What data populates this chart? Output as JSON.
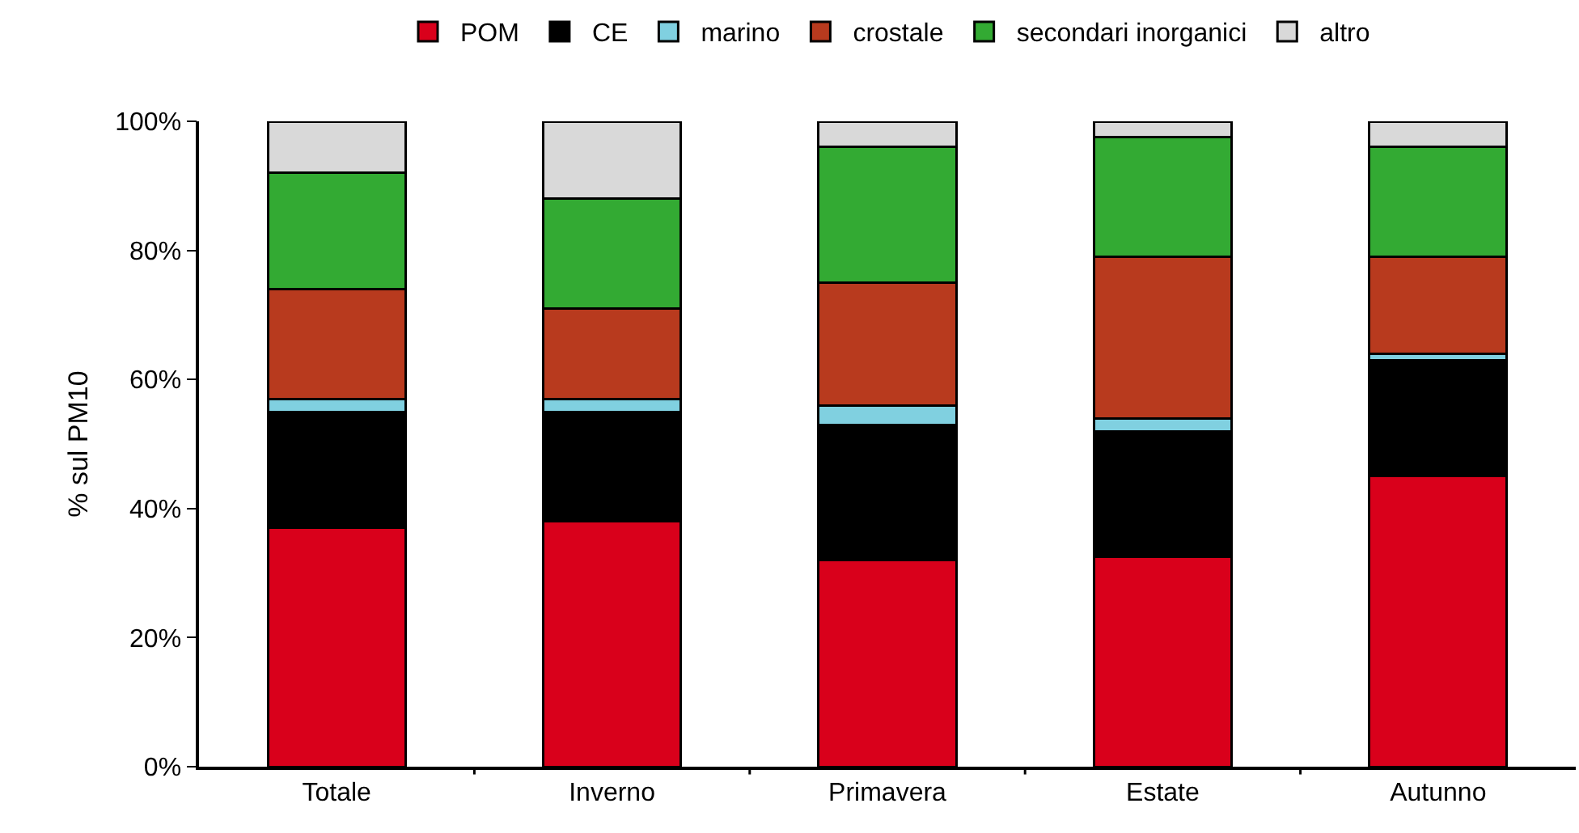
{
  "chart_data": {
    "type": "bar",
    "stacked": true,
    "ylabel": "% sul PM10",
    "legend": "top",
    "categories": [
      "Totale",
      "Inverno",
      "Primavera",
      "Estate",
      "Autunno"
    ],
    "ylim": [
      0,
      100
    ],
    "yticks": [
      {
        "value": 0,
        "label": "0%"
      },
      {
        "value": 20,
        "label": "20%"
      },
      {
        "value": 40,
        "label": "40%"
      },
      {
        "value": 60,
        "label": "60%"
      },
      {
        "value": 80,
        "label": "80%"
      },
      {
        "value": 100,
        "label": "100%"
      }
    ],
    "series": [
      {
        "name": "POM",
        "color": "#d9001b",
        "values": [
          37,
          38,
          32,
          32.5,
          45
        ]
      },
      {
        "name": "CE",
        "color": "#000000",
        "values": [
          18,
          17,
          21,
          19.5,
          18
        ]
      },
      {
        "name": "marino",
        "color": "#80d0e0",
        "values": [
          2,
          2,
          3,
          2,
          1
        ]
      },
      {
        "name": "crostale",
        "color": "#b83a1e",
        "values": [
          17,
          14,
          19,
          25,
          15
        ]
      },
      {
        "name": "secondari inorganici",
        "color": "#33aa33",
        "values": [
          18,
          17,
          21,
          18.5,
          17
        ]
      },
      {
        "name": "altro",
        "color": "#d9d9d9",
        "values": [
          8,
          12,
          4,
          2.5,
          4
        ]
      }
    ]
  }
}
